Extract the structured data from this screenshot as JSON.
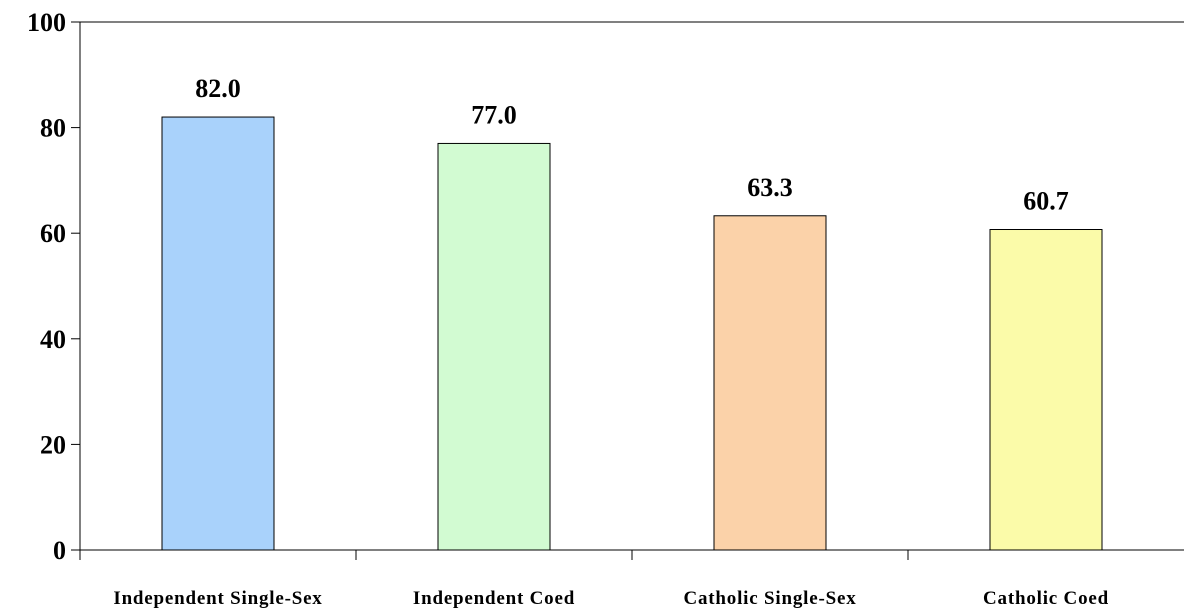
{
  "chart_data": {
    "type": "bar",
    "title": "",
    "xlabel": "",
    "ylabel": "",
    "categories": [
      "Independent Single-Sex",
      "Independent Coed",
      "Catholic Single-Sex",
      "Catholic Coed"
    ],
    "values": [
      82.0,
      77.0,
      63.3,
      60.7
    ],
    "value_labels": [
      "82.0",
      "77.0",
      "63.3",
      "60.7"
    ],
    "bar_colors": [
      "#a9d2fb",
      "#d2fbd2",
      "#fbd2a9",
      "#fbfba9"
    ],
    "ylim": [
      0,
      100
    ],
    "yticks": [
      0,
      20,
      40,
      60,
      80,
      100
    ],
    "grid": false,
    "legend": "none"
  }
}
